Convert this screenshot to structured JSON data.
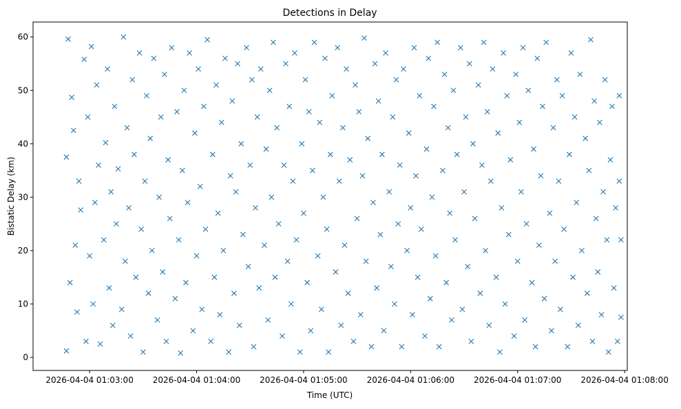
{
  "chart_data": {
    "type": "scatter",
    "title": "Detections in Delay",
    "xlabel": "Time (UTC)",
    "ylabel": "Bistatic Delay (km)",
    "x_unit": "seconds after 2026-04-04 01:02:00",
    "xlim": [
      28.3,
      361.5
    ],
    "ylim": [
      -2.45,
      62.8
    ],
    "xticks": [
      60,
      120,
      180,
      240,
      300,
      360
    ],
    "xtick_labels": [
      "2026-04-04 01:03:00",
      "2026-04-04 01:04:00",
      "2026-04-04 01:05:00",
      "2026-04-04 01:06:00",
      "2026-04-04 01:07:00",
      "2026-04-04 01:08:00"
    ],
    "yticks": [
      0,
      10,
      20,
      30,
      40,
      50,
      60
    ],
    "ytick_labels": [
      "0",
      "10",
      "20",
      "30",
      "40",
      "50",
      "60"
    ],
    "grid": false,
    "marker": "x",
    "color": "#1f77b4",
    "note": "approximate sample of the ~1500 plotted detections, roughly uniform over time 01:02:47–01:07:58 and delay 0.5–60 km",
    "points": [
      [
        47,
        1.2
      ],
      [
        47,
        37.5
      ],
      [
        48,
        59.6
      ],
      [
        49,
        14
      ],
      [
        50,
        48.7
      ],
      [
        51,
        42.5
      ],
      [
        52,
        21
      ],
      [
        53,
        8.5
      ],
      [
        54,
        33
      ],
      [
        55,
        27.6
      ],
      [
        57,
        55.8
      ],
      [
        58,
        3
      ],
      [
        59,
        45
      ],
      [
        60,
        19
      ],
      [
        61,
        58.2
      ],
      [
        62,
        10
      ],
      [
        63,
        29
      ],
      [
        64,
        51
      ],
      [
        65,
        36
      ],
      [
        66,
        2.5
      ],
      [
        68,
        22
      ],
      [
        69,
        40.2
      ],
      [
        70,
        54
      ],
      [
        71,
        13
      ],
      [
        72,
        31
      ],
      [
        73,
        6
      ],
      [
        74,
        47
      ],
      [
        75,
        25
      ],
      [
        76,
        35.3
      ],
      [
        78,
        9
      ],
      [
        79,
        60
      ],
      [
        80,
        18
      ],
      [
        81,
        43
      ],
      [
        82,
        28
      ],
      [
        83,
        4
      ],
      [
        84,
        52
      ],
      [
        85,
        38
      ],
      [
        86,
        15
      ],
      [
        88,
        57
      ],
      [
        89,
        24
      ],
      [
        90,
        1
      ],
      [
        91,
        33
      ],
      [
        92,
        49
      ],
      [
        93,
        12
      ],
      [
        94,
        41
      ],
      [
        95,
        20
      ],
      [
        96,
        56
      ],
      [
        98,
        7
      ],
      [
        99,
        30
      ],
      [
        100,
        45
      ],
      [
        101,
        16
      ],
      [
        102,
        53
      ],
      [
        103,
        3
      ],
      [
        104,
        37
      ],
      [
        105,
        26
      ],
      [
        106,
        58
      ],
      [
        108,
        11
      ],
      [
        109,
        46
      ],
      [
        110,
        22
      ],
      [
        111,
        0.8
      ],
      [
        112,
        35
      ],
      [
        113,
        50
      ],
      [
        114,
        14
      ],
      [
        115,
        29
      ],
      [
        116,
        57
      ],
      [
        118,
        5
      ],
      [
        119,
        42
      ],
      [
        120,
        19
      ],
      [
        121,
        54
      ],
      [
        122,
        32
      ],
      [
        123,
        9
      ],
      [
        124,
        47
      ],
      [
        125,
        24
      ],
      [
        126,
        59.5
      ],
      [
        128,
        3
      ],
      [
        129,
        38
      ],
      [
        130,
        15
      ],
      [
        131,
        51
      ],
      [
        132,
        27
      ],
      [
        133,
        8
      ],
      [
        134,
        44
      ],
      [
        135,
        20
      ],
      [
        136,
        56
      ],
      [
        138,
        1
      ],
      [
        139,
        34
      ],
      [
        140,
        48
      ],
      [
        141,
        12
      ],
      [
        142,
        31
      ],
      [
        143,
        55
      ],
      [
        144,
        6
      ],
      [
        145,
        40
      ],
      [
        146,
        23
      ],
      [
        148,
        58
      ],
      [
        149,
        17
      ],
      [
        150,
        36
      ],
      [
        151,
        52
      ],
      [
        152,
        2
      ],
      [
        153,
        28
      ],
      [
        154,
        45
      ],
      [
        155,
        13
      ],
      [
        156,
        54
      ],
      [
        158,
        21
      ],
      [
        159,
        39
      ],
      [
        160,
        7
      ],
      [
        161,
        50
      ],
      [
        162,
        30
      ],
      [
        163,
        59
      ],
      [
        164,
        15
      ],
      [
        165,
        43
      ],
      [
        166,
        25
      ],
      [
        168,
        4
      ],
      [
        169,
        36
      ],
      [
        170,
        55
      ],
      [
        171,
        18
      ],
      [
        172,
        47
      ],
      [
        173,
        10
      ],
      [
        174,
        33
      ],
      [
        175,
        57
      ],
      [
        176,
        22
      ],
      [
        178,
        1
      ],
      [
        179,
        40
      ],
      [
        180,
        27
      ],
      [
        181,
        52
      ],
      [
        182,
        14
      ],
      [
        183,
        46
      ],
      [
        184,
        5
      ],
      [
        185,
        35
      ],
      [
        186,
        59
      ],
      [
        188,
        19
      ],
      [
        189,
        44
      ],
      [
        190,
        9
      ],
      [
        191,
        30
      ],
      [
        192,
        56
      ],
      [
        193,
        24
      ],
      [
        194,
        1
      ],
      [
        195,
        38
      ],
      [
        196,
        49
      ],
      [
        198,
        16
      ],
      [
        199,
        58
      ],
      [
        200,
        33
      ],
      [
        201,
        6
      ],
      [
        202,
        43
      ],
      [
        203,
        21
      ],
      [
        204,
        54
      ],
      [
        205,
        12
      ],
      [
        206,
        37
      ],
      [
        208,
        3
      ],
      [
        209,
        51
      ],
      [
        210,
        26
      ],
      [
        211,
        46
      ],
      [
        212,
        8
      ],
      [
        213,
        34
      ],
      [
        214,
        59.8
      ],
      [
        215,
        18
      ],
      [
        216,
        41
      ],
      [
        218,
        2
      ],
      [
        219,
        29
      ],
      [
        220,
        55
      ],
      [
        221,
        13
      ],
      [
        222,
        48
      ],
      [
        223,
        23
      ],
      [
        224,
        38
      ],
      [
        225,
        5
      ],
      [
        226,
        57
      ],
      [
        228,
        31
      ],
      [
        229,
        17
      ],
      [
        230,
        45
      ],
      [
        231,
        10
      ],
      [
        232,
        52
      ],
      [
        233,
        25
      ],
      [
        234,
        36
      ],
      [
        235,
        2
      ],
      [
        236,
        54
      ],
      [
        238,
        20
      ],
      [
        239,
        42
      ],
      [
        240,
        28
      ],
      [
        241,
        8
      ],
      [
        242,
        58
      ],
      [
        243,
        34
      ],
      [
        244,
        15
      ],
      [
        245,
        49
      ],
      [
        246,
        24
      ],
      [
        248,
        4
      ],
      [
        249,
        39
      ],
      [
        250,
        56
      ],
      [
        251,
        11
      ],
      [
        252,
        30
      ],
      [
        253,
        47
      ],
      [
        254,
        19
      ],
      [
        255,
        59
      ],
      [
        256,
        2
      ],
      [
        258,
        35
      ],
      [
        259,
        53
      ],
      [
        260,
        14
      ],
      [
        261,
        43
      ],
      [
        262,
        27
      ],
      [
        263,
        7
      ],
      [
        264,
        50
      ],
      [
        265,
        22
      ],
      [
        266,
        38
      ],
      [
        268,
        58
      ],
      [
        269,
        9
      ],
      [
        270,
        31
      ],
      [
        271,
        45
      ],
      [
        272,
        17
      ],
      [
        273,
        55
      ],
      [
        274,
        3
      ],
      [
        275,
        40
      ],
      [
        276,
        26
      ],
      [
        278,
        51
      ],
      [
        279,
        12
      ],
      [
        280,
        36
      ],
      [
        281,
        59
      ],
      [
        282,
        20
      ],
      [
        283,
        46
      ],
      [
        284,
        6
      ],
      [
        285,
        33
      ],
      [
        286,
        54
      ],
      [
        288,
        15
      ],
      [
        289,
        42
      ],
      [
        290,
        1
      ],
      [
        291,
        28
      ],
      [
        292,
        57
      ],
      [
        293,
        10
      ],
      [
        294,
        49
      ],
      [
        295,
        23
      ],
      [
        296,
        37
      ],
      [
        298,
        4
      ],
      [
        299,
        53
      ],
      [
        300,
        18
      ],
      [
        301,
        44
      ],
      [
        302,
        31
      ],
      [
        303,
        58
      ],
      [
        304,
        7
      ],
      [
        305,
        25
      ],
      [
        306,
        50
      ],
      [
        308,
        14
      ],
      [
        309,
        39
      ],
      [
        310,
        2
      ],
      [
        311,
        56
      ],
      [
        312,
        21
      ],
      [
        313,
        34
      ],
      [
        314,
        47
      ],
      [
        315,
        11
      ],
      [
        316,
        59
      ],
      [
        318,
        27
      ],
      [
        319,
        5
      ],
      [
        320,
        43
      ],
      [
        321,
        18
      ],
      [
        322,
        52
      ],
      [
        323,
        33
      ],
      [
        324,
        9
      ],
      [
        325,
        49
      ],
      [
        326,
        24
      ],
      [
        328,
        2
      ],
      [
        329,
        38
      ],
      [
        330,
        57
      ],
      [
        331,
        15
      ],
      [
        332,
        45
      ],
      [
        333,
        29
      ],
      [
        334,
        6
      ],
      [
        335,
        53
      ],
      [
        336,
        20
      ],
      [
        338,
        41
      ],
      [
        339,
        12
      ],
      [
        340,
        35
      ],
      [
        341,
        59.5
      ],
      [
        342,
        3
      ],
      [
        343,
        48
      ],
      [
        344,
        26
      ],
      [
        345,
        16
      ],
      [
        346,
        44
      ],
      [
        347,
        8
      ],
      [
        348,
        31
      ],
      [
        349,
        52
      ],
      [
        350,
        22
      ],
      [
        351,
        1
      ],
      [
        352,
        37
      ],
      [
        353,
        47
      ],
      [
        354,
        13
      ],
      [
        355,
        28
      ],
      [
        356,
        3
      ],
      [
        357,
        33
      ],
      [
        357,
        49
      ],
      [
        358,
        7.5
      ],
      [
        358,
        22
      ]
    ]
  }
}
